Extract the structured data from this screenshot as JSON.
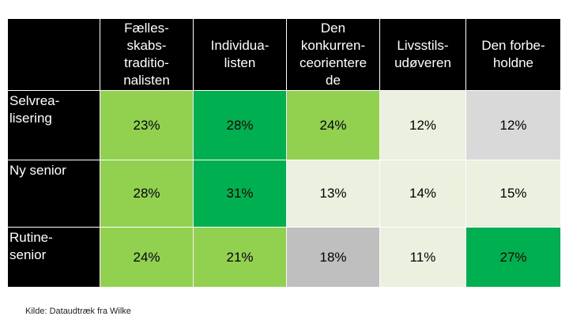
{
  "chart_data": {
    "type": "table",
    "columns": [
      "Fælles-\nskabs-\ntraditio-\nnalisten",
      "Individua-\nlisten",
      "Den\nkonkurren-\nceorientere\nde",
      "Livsstils-\nudøveren",
      "Den forbe-\nholdne"
    ],
    "rows": [
      {
        "label": "Selvrea-\nlisering",
        "values": [
          23,
          28,
          24,
          12,
          12
        ]
      },
      {
        "label": "Ny senior",
        "values": [
          28,
          31,
          13,
          14,
          15
        ]
      },
      {
        "label": "Rutine-\nsenior",
        "values": [
          24,
          21,
          18,
          11,
          27
        ]
      }
    ],
    "unit": "%",
    "cell_colors": [
      [
        "#92d050",
        "#00b050",
        "#92d050",
        "#ebf1de",
        "#d9d9d9"
      ],
      [
        "#92d050",
        "#00b050",
        "#ebf1de",
        "#ebf1de",
        "#ebf1de"
      ],
      [
        "#92d050",
        "#92d050",
        "#bfbfbf",
        "#ebf1de",
        "#00b050"
      ]
    ]
  },
  "source_note": "Kilde: Dataudtræk fra Wilke"
}
